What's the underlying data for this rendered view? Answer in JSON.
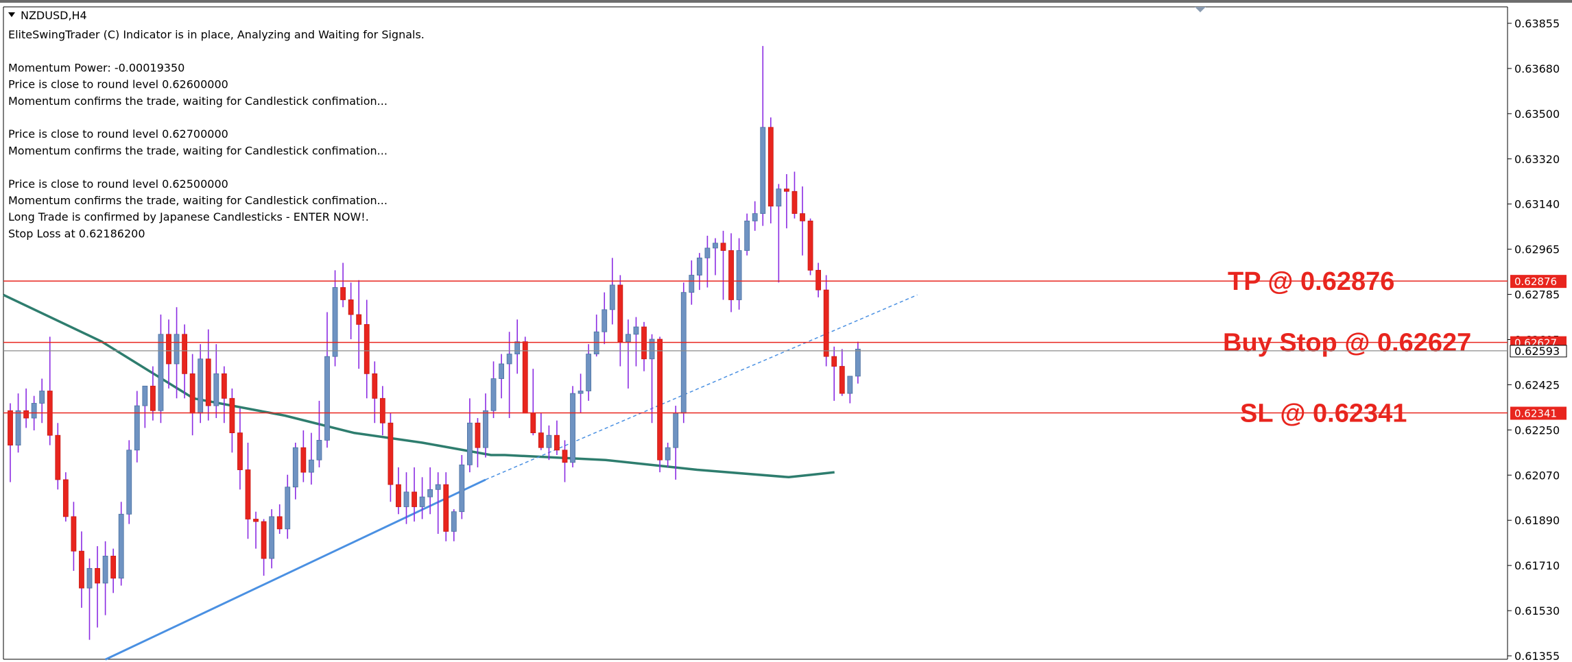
{
  "window": {
    "title": "NZDUSD,H4"
  },
  "info_panel": {
    "lines": [
      "EliteSwingTrader (C) Indicator is in place, Analyzing and Waiting for Signals.",
      "",
      "Momentum Power: -0.00019350",
      "Price is close to round level 0.62600000",
      "Momentum confirms the trade, waiting for Candlestick confimation...",
      "",
      "Price is close to round level 0.62700000",
      "Momentum confirms the trade, waiting for Candlestick confimation...",
      "",
      "Price is close to round level 0.62500000",
      "Momentum confirms the trade, waiting for Candlestick confimation...",
      "Long Trade is confirmed by Japanese Candlesticks - ENTER NOW!.",
      "Stop Loss at 0.62186200"
    ]
  },
  "colors": {
    "bull_body": "#6f93c2",
    "bear_body": "#e8251e",
    "wick": "#8a2be2",
    "moving_average": "#2e7d6e",
    "trendline": "#4a90e2",
    "level_line": "#e8251e",
    "axis_tag_bg": "#e8251e",
    "bid_line": "#8a8a8a"
  },
  "chart_data": {
    "type": "candlestick",
    "symbol": "NZDUSD",
    "timeframe": "H4",
    "ylim": [
      0.61355,
      0.6395
    ],
    "y_ticks": [
      "0.63855",
      "0.63680",
      "0.63500",
      "0.63320",
      "0.63140",
      "0.62965",
      "0.62785",
      "0.62605",
      "0.62425",
      "0.62250",
      "0.62070",
      "0.61890",
      "0.61710",
      "0.61530",
      "0.61355"
    ],
    "candles": [
      [
        0.6235,
        0.6238,
        0.6206,
        0.6221
      ],
      [
        0.6221,
        0.6242,
        0.6218,
        0.6235
      ],
      [
        0.6235,
        0.6244,
        0.6228,
        0.6232
      ],
      [
        0.6232,
        0.6241,
        0.6227,
        0.6238
      ],
      [
        0.6238,
        0.6248,
        0.623,
        0.6243
      ],
      [
        0.6243,
        0.6265,
        0.6221,
        0.6225
      ],
      [
        0.6225,
        0.623,
        0.6203,
        0.6207
      ],
      [
        0.6207,
        0.621,
        0.619,
        0.6192
      ],
      [
        0.6192,
        0.6198,
        0.617,
        0.6178
      ],
      [
        0.6178,
        0.6186,
        0.6155,
        0.6163
      ],
      [
        0.6163,
        0.6175,
        0.6142,
        0.6171
      ],
      [
        0.6171,
        0.618,
        0.6147,
        0.6165
      ],
      [
        0.6165,
        0.6182,
        0.6152,
        0.6176
      ],
      [
        0.6176,
        0.6179,
        0.6161,
        0.6167
      ],
      [
        0.6167,
        0.6198,
        0.6164,
        0.6193
      ],
      [
        0.6193,
        0.6223,
        0.6189,
        0.6219
      ],
      [
        0.6219,
        0.6243,
        0.6214,
        0.6237
      ],
      [
        0.6237,
        0.6245,
        0.6228,
        0.6245
      ],
      [
        0.6245,
        0.6253,
        0.6231,
        0.6235
      ],
      [
        0.6235,
        0.6274,
        0.623,
        0.6266
      ],
      [
        0.6266,
        0.6272,
        0.6244,
        0.6254
      ],
      [
        0.6254,
        0.6277,
        0.624,
        0.6266
      ],
      [
        0.6266,
        0.627,
        0.624,
        0.625
      ],
      [
        0.625,
        0.6258,
        0.6225,
        0.6234
      ],
      [
        0.6234,
        0.6262,
        0.623,
        0.6256
      ],
      [
        0.6256,
        0.6268,
        0.6231,
        0.6237
      ],
      [
        0.6237,
        0.6262,
        0.6232,
        0.625
      ],
      [
        0.625,
        0.6253,
        0.623,
        0.624
      ],
      [
        0.624,
        0.6244,
        0.6218,
        0.6226
      ],
      [
        0.6226,
        0.6236,
        0.6203,
        0.6211
      ],
      [
        0.6211,
        0.6222,
        0.6183,
        0.6191
      ],
      [
        0.6191,
        0.6194,
        0.6179,
        0.619
      ],
      [
        0.619,
        0.6191,
        0.6168,
        0.6175
      ],
      [
        0.6175,
        0.6195,
        0.6171,
        0.6192
      ],
      [
        0.6192,
        0.6197,
        0.6185,
        0.6187
      ],
      [
        0.6187,
        0.6209,
        0.6183,
        0.6204
      ],
      [
        0.6204,
        0.6222,
        0.6199,
        0.622
      ],
      [
        0.622,
        0.6227,
        0.6206,
        0.621
      ],
      [
        0.621,
        0.6226,
        0.6205,
        0.6215
      ],
      [
        0.6215,
        0.6239,
        0.6212,
        0.6223
      ],
      [
        0.6223,
        0.6275,
        0.622,
        0.6257
      ],
      [
        0.6257,
        0.6292,
        0.6253,
        0.6285
      ],
      [
        0.6285,
        0.6295,
        0.6277,
        0.628
      ],
      [
        0.628,
        0.6287,
        0.6264,
        0.6274
      ],
      [
        0.6274,
        0.6288,
        0.6252,
        0.627
      ],
      [
        0.627,
        0.628,
        0.624,
        0.625
      ],
      [
        0.625,
        0.6255,
        0.623,
        0.624
      ],
      [
        0.624,
        0.6245,
        0.6225,
        0.623
      ],
      [
        0.623,
        0.6234,
        0.6198,
        0.6205
      ],
      [
        0.6205,
        0.6212,
        0.6193,
        0.6196
      ],
      [
        0.6196,
        0.621,
        0.6189,
        0.6202
      ],
      [
        0.6202,
        0.6212,
        0.619,
        0.6196
      ],
      [
        0.6196,
        0.6208,
        0.6191,
        0.62
      ],
      [
        0.62,
        0.6212,
        0.6193,
        0.6203
      ],
      [
        0.6203,
        0.621,
        0.6185,
        0.6205
      ],
      [
        0.6205,
        0.621,
        0.6182,
        0.6186
      ],
      [
        0.6186,
        0.6195,
        0.6182,
        0.6194
      ],
      [
        0.6194,
        0.6217,
        0.6191,
        0.6213
      ],
      [
        0.6213,
        0.624,
        0.621,
        0.623
      ],
      [
        0.623,
        0.6232,
        0.6212,
        0.622
      ],
      [
        0.622,
        0.6242,
        0.6216,
        0.6235
      ],
      [
        0.6235,
        0.6255,
        0.6232,
        0.6248
      ],
      [
        0.6248,
        0.6258,
        0.624,
        0.6254
      ],
      [
        0.6254,
        0.6267,
        0.6232,
        0.6258
      ],
      [
        0.6258,
        0.6272,
        0.625,
        0.6263
      ],
      [
        0.6263,
        0.6265,
        0.6234,
        0.6234
      ],
      [
        0.6234,
        0.6252,
        0.6225,
        0.6226
      ],
      [
        0.6226,
        0.6234,
        0.6219,
        0.622
      ],
      [
        0.622,
        0.6229,
        0.6215,
        0.6225
      ],
      [
        0.6225,
        0.6231,
        0.6217,
        0.6219
      ],
      [
        0.6219,
        0.6223,
        0.6206,
        0.6214
      ],
      [
        0.6214,
        0.6245,
        0.6212,
        0.6242
      ],
      [
        0.6242,
        0.625,
        0.6234,
        0.6243
      ],
      [
        0.6243,
        0.6262,
        0.6239,
        0.6258
      ],
      [
        0.6258,
        0.6274,
        0.6257,
        0.6267
      ],
      [
        0.6267,
        0.6283,
        0.6262,
        0.6276
      ],
      [
        0.6276,
        0.6297,
        0.627,
        0.6286
      ],
      [
        0.6286,
        0.629,
        0.6253,
        0.6263
      ],
      [
        0.6263,
        0.6272,
        0.6244,
        0.6266
      ],
      [
        0.6266,
        0.6273,
        0.6253,
        0.6269
      ],
      [
        0.6269,
        0.6271,
        0.6251,
        0.6256
      ],
      [
        0.6256,
        0.6266,
        0.623,
        0.6264
      ],
      [
        0.6264,
        0.6265,
        0.621,
        0.6215
      ],
      [
        0.6215,
        0.6222,
        0.6212,
        0.622
      ],
      [
        0.622,
        0.6237,
        0.6207,
        0.6234
      ],
      [
        0.6234,
        0.6287,
        0.623,
        0.6283
      ],
      [
        0.6283,
        0.6296,
        0.6278,
        0.629
      ],
      [
        0.629,
        0.6299,
        0.6284,
        0.6297
      ],
      [
        0.6297,
        0.6306,
        0.6285,
        0.6301
      ],
      [
        0.6301,
        0.6305,
        0.629,
        0.6303
      ],
      [
        0.6303,
        0.6308,
        0.628,
        0.63
      ],
      [
        0.63,
        0.6307,
        0.6275,
        0.628
      ],
      [
        0.628,
        0.6305,
        0.6276,
        0.63
      ],
      [
        0.63,
        0.6315,
        0.6298,
        0.6312
      ],
      [
        0.6312,
        0.632,
        0.6308,
        0.6315
      ],
      [
        0.6315,
        0.6383,
        0.631,
        0.635
      ],
      [
        0.635,
        0.6354,
        0.6311,
        0.6318
      ],
      [
        0.6318,
        0.6327,
        0.6287,
        0.6325
      ],
      [
        0.6325,
        0.6331,
        0.6309,
        0.6324
      ],
      [
        0.6324,
        0.6332,
        0.6313,
        0.6315
      ],
      [
        0.6315,
        0.6326,
        0.6298,
        0.6312
      ],
      [
        0.6312,
        0.6313,
        0.629,
        0.6292
      ],
      [
        0.6292,
        0.6295,
        0.6281,
        0.6284
      ],
      [
        0.6284,
        0.629,
        0.6253,
        0.6257
      ],
      [
        0.6257,
        0.6261,
        0.6239,
        0.6253
      ],
      [
        0.6253,
        0.626,
        0.6241,
        0.6242
      ],
      [
        0.6242,
        0.6249,
        0.6238,
        0.6249
      ],
      [
        0.6249,
        0.6263,
        0.6246,
        0.626
      ]
    ],
    "moving_average": [
      [
        0,
        0.6282
      ],
      [
        20,
        0.6263
      ],
      [
        40,
        0.624
      ],
      [
        60,
        0.6233
      ],
      [
        75,
        0.6226
      ],
      [
        90,
        0.6222
      ],
      [
        105,
        0.6217
      ],
      [
        108,
        0.6217
      ],
      [
        130,
        0.6215
      ],
      [
        150,
        0.6211
      ],
      [
        170,
        0.6208
      ],
      [
        175,
        0.6209
      ],
      [
        180,
        0.621
      ]
    ],
    "trendline": {
      "from": [
        24,
        0.6134
      ],
      "to": [
        120,
        0.6207
      ]
    },
    "trendline_extension": {
      "from": [
        120,
        0.6207
      ],
      "to": [
        229,
        0.6282
      ]
    },
    "levels": [
      {
        "label": "TP @ 0.62876",
        "price": 0.62876,
        "tag": "0.62876"
      },
      {
        "label": "Buy Stop @ 0.62627",
        "price": 0.62627,
        "tag": "0.62627"
      },
      {
        "label": "SL @ 0.62341",
        "price": 0.62341,
        "tag": "0.62341"
      }
    ],
    "bid": {
      "price": 0.62593,
      "tag": "0.62593"
    }
  }
}
